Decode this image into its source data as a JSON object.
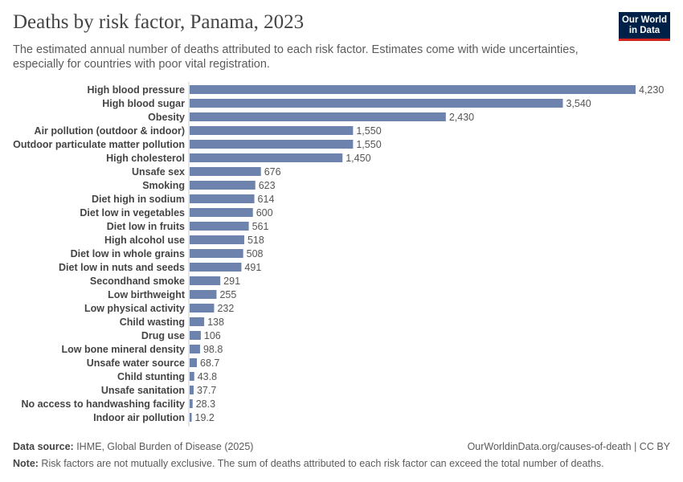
{
  "header": {
    "title": "Deaths by risk factor, Panama, 2023",
    "subtitle": "The estimated annual number of deaths attributed to each risk factor. Estimates come with wide uncertainties, especially for countries with poor vital registration.",
    "logo_line1": "Our World",
    "logo_line2": "in Data"
  },
  "footer": {
    "source_label": "Data source:",
    "source_text": " IHME, Global Burden of Disease (2025)",
    "link": "OurWorldinData.org/causes-of-death | CC BY",
    "note_label": "Note:",
    "note_text": " Risk factors are not mutually exclusive. The sum of deaths attributed to each risk factor can exceed the total number of deaths."
  },
  "colors": {
    "bar": "#6d83ae",
    "axis": "#cccccc"
  },
  "chart_data": {
    "type": "bar",
    "orientation": "horizontal",
    "title": "Deaths by risk factor, Panama, 2023",
    "categories": [
      "High blood pressure",
      "High blood sugar",
      "Obesity",
      "Air pollution (outdoor & indoor)",
      "Outdoor particulate matter pollution",
      "High cholesterol",
      "Unsafe sex",
      "Smoking",
      "Diet high in sodium",
      "Diet low in vegetables",
      "Diet low in fruits",
      "High alcohol use",
      "Diet low in whole grains",
      "Diet low in nuts and seeds",
      "Secondhand smoke",
      "Low birthweight",
      "Low physical activity",
      "Child wasting",
      "Drug use",
      "Low bone mineral density",
      "Unsafe water source",
      "Child stunting",
      "Unsafe sanitation",
      "No access to handwashing facility",
      "Indoor air pollution"
    ],
    "values": [
      4230,
      3540,
      2430,
      1550,
      1550,
      1450,
      676,
      623,
      614,
      600,
      561,
      518,
      508,
      491,
      291,
      255,
      232,
      138,
      106,
      98.8,
      68.7,
      43.8,
      37.7,
      28.3,
      19.2
    ],
    "value_labels": [
      "4,230",
      "3,540",
      "2,430",
      "1,550",
      "1,550",
      "1,450",
      "676",
      "623",
      "614",
      "600",
      "561",
      "518",
      "508",
      "491",
      "291",
      "255",
      "232",
      "138",
      "106",
      "98.8",
      "68.7",
      "43.8",
      "37.7",
      "28.3",
      "19.2"
    ],
    "xlim": [
      0,
      4230
    ]
  }
}
